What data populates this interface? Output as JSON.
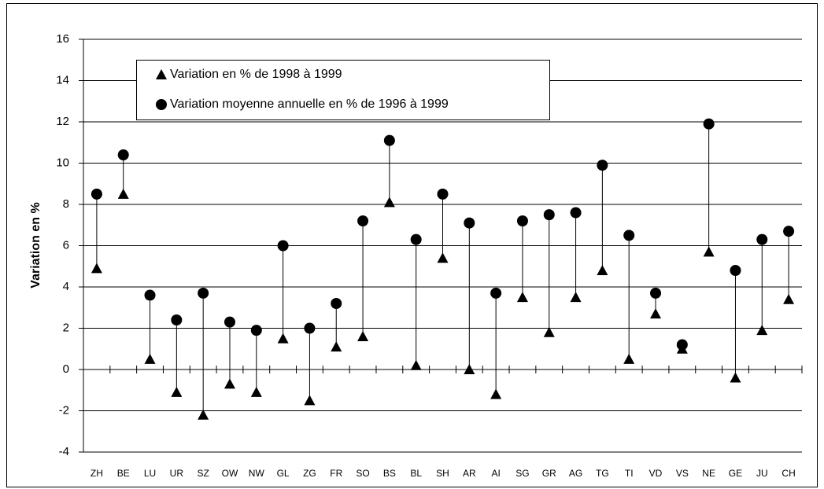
{
  "chart_data": {
    "type": "dot-range",
    "ylabel": "Variation en %",
    "categories": [
      "ZH",
      "BE",
      "LU",
      "UR",
      "SZ",
      "OW",
      "NW",
      "GL",
      "ZG",
      "FR",
      "SO",
      "BS",
      "BL",
      "SH",
      "AR",
      "AI",
      "SG",
      "GR",
      "AG",
      "TG",
      "TI",
      "VD",
      "VS",
      "NE",
      "GE",
      "JU",
      "CH"
    ],
    "series": [
      {
        "name": "Variation en % de 1998 à 1999",
        "color": "#000000",
        "marker": "triangle",
        "values": [
          4.9,
          8.5,
          0.5,
          -1.1,
          -2.2,
          -0.7,
          -1.1,
          1.5,
          -1.5,
          1.1,
          1.6,
          8.1,
          0.2,
          5.4,
          0,
          -1.2,
          3.5,
          1.8,
          3.5,
          4.8,
          0.5,
          2.7,
          1.0,
          5.7,
          -0.4,
          1.9,
          3.4
        ]
      },
      {
        "name": "Variation moyenne annuelle en % de 1996 à 1999",
        "color": "#000000",
        "marker": "circle",
        "values": [
          8.5,
          10.4,
          3.6,
          2.4,
          3.7,
          2.3,
          1.9,
          6.0,
          2.0,
          3.2,
          7.2,
          11.1,
          6.3,
          8.5,
          7.1,
          3.7,
          7.2,
          7.5,
          7.6,
          9.9,
          6.5,
          3.7,
          1.2,
          11.9,
          4.8,
          6.3,
          6.7
        ]
      }
    ],
    "ylim": [
      -4,
      16
    ],
    "yticks": [
      -4,
      -2,
      0,
      2,
      4,
      6,
      8,
      10,
      12,
      14,
      16
    ],
    "grid": true,
    "legend": "top-left"
  }
}
